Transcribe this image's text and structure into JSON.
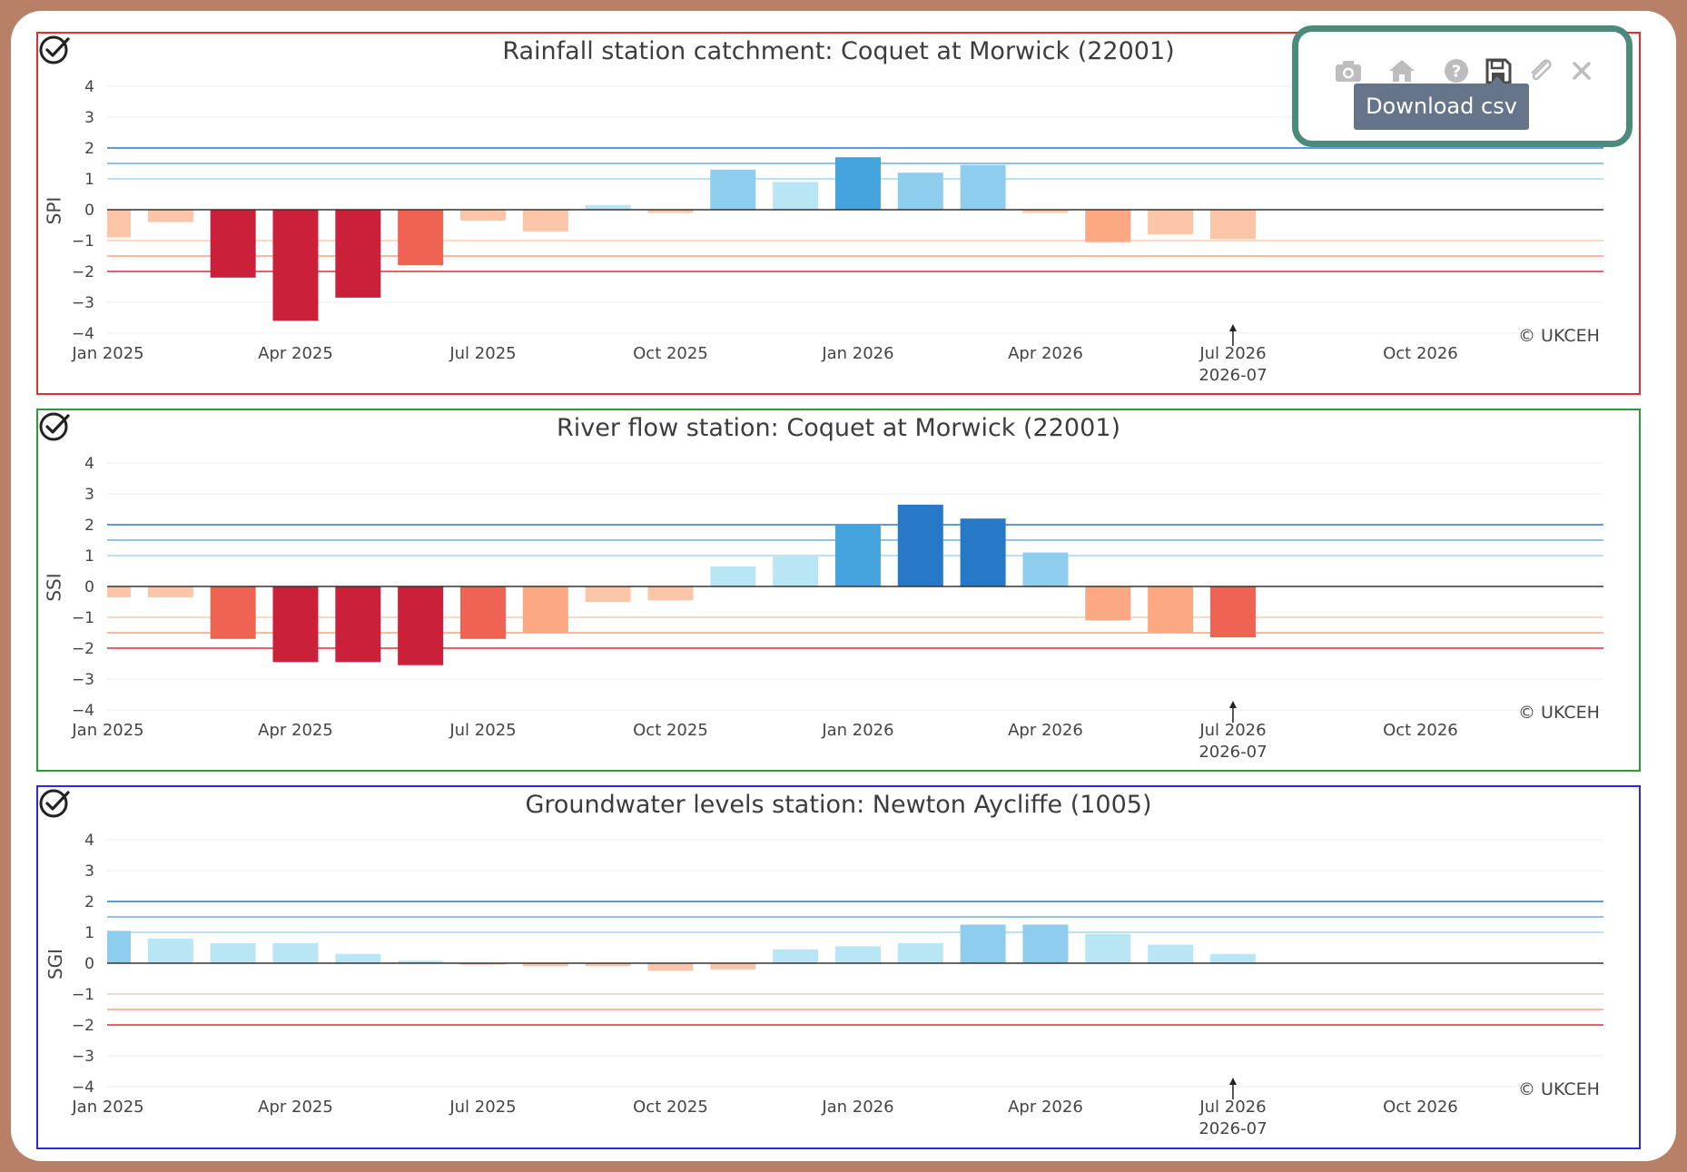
{
  "toolbar": {
    "icons": [
      "camera-icon",
      "home-icon",
      "help-icon",
      "save-icon",
      "attach-icon",
      "close-icon"
    ],
    "tooltip": "Download csv"
  },
  "credit": "© UKCEH",
  "chart_data": [
    {
      "type": "bar",
      "title": "Rainfall station catchment: Coquet at Morwick (22001)",
      "ylabel": "SPI",
      "ylim": [
        -4,
        4
      ],
      "y_ticks": [
        "4",
        "3",
        "2",
        "1",
        "0",
        "−1",
        "−2",
        "−3",
        "−4"
      ],
      "x_ticks": [
        "Jan 2025",
        "Apr 2025",
        "Jul 2025",
        "Oct 2025",
        "Jan 2026",
        "Apr 2026",
        "Jul 2026",
        "Oct 2026"
      ],
      "marker_label": "2026-07",
      "categories": [
        "2025-01",
        "2025-02",
        "2025-03",
        "2025-04",
        "2025-05",
        "2025-06",
        "2025-07",
        "2025-08",
        "2025-09",
        "2025-10",
        "2025-11",
        "2025-12",
        "2026-01",
        "2026-02",
        "2026-03",
        "2026-04",
        "2026-05",
        "2026-06",
        "2026-07"
      ],
      "values": [
        -0.9,
        -0.4,
        -2.2,
        -3.6,
        -2.85,
        -1.8,
        -0.35,
        -0.7,
        0.15,
        -0.1,
        1.3,
        0.9,
        1.7,
        1.2,
        1.45,
        -0.1,
        -1.05,
        -0.8,
        -0.95
      ],
      "colors": [
        "#fcc5a8",
        "#fcc5a8",
        "#cb2039",
        "#cb2039",
        "#cb2039",
        "#ee6352",
        "#fcc5a8",
        "#fcc5a8",
        "#b9e6f4",
        "#fcc5a8",
        "#8fcdee",
        "#b9e6f4",
        "#45a3dd",
        "#8fcdee",
        "#8fcdee",
        "#fcc5a8",
        "#fca883",
        "#fcc5a8",
        "#fcc5a8"
      ],
      "thresholds": [
        {
          "value": 2,
          "color": "#5b9bdc"
        },
        {
          "value": 1.5,
          "color": "#8fc3ea"
        },
        {
          "value": 1,
          "color": "#b9e0f4"
        },
        {
          "value": -1,
          "color": "#fdd8c7"
        },
        {
          "value": -1.5,
          "color": "#fbb8a0"
        },
        {
          "value": -2,
          "color": "#e8616a"
        }
      ]
    },
    {
      "type": "bar",
      "title": "River flow station: Coquet at Morwick (22001)",
      "ylabel": "SSI",
      "ylim": [
        -4,
        4
      ],
      "y_ticks": [
        "4",
        "3",
        "2",
        "1",
        "0",
        "−1",
        "−2",
        "−3",
        "−4"
      ],
      "x_ticks": [
        "Jan 2025",
        "Apr 2025",
        "Jul 2025",
        "Oct 2025",
        "Jan 2026",
        "Apr 2026",
        "Jul 2026",
        "Oct 2026"
      ],
      "marker_label": "2026-07",
      "categories": [
        "2025-01",
        "2025-02",
        "2025-03",
        "2025-04",
        "2025-05",
        "2025-06",
        "2025-07",
        "2025-08",
        "2025-09",
        "2025-10",
        "2025-11",
        "2025-12",
        "2026-01",
        "2026-02",
        "2026-03",
        "2026-04",
        "2026-05",
        "2026-06",
        "2026-07"
      ],
      "values": [
        -0.35,
        -0.35,
        -1.7,
        -2.45,
        -2.45,
        -2.55,
        -1.7,
        -1.5,
        -0.5,
        -0.45,
        0.65,
        1.0,
        2.0,
        2.65,
        2.2,
        1.1,
        -1.1,
        -1.5,
        -1.65
      ],
      "colors": [
        "#fcc5a8",
        "#fcc5a8",
        "#ee6352",
        "#cb2039",
        "#cb2039",
        "#cb2039",
        "#ee6352",
        "#fca883",
        "#fcc5a8",
        "#fcc5a8",
        "#b9e6f4",
        "#b9e6f4",
        "#45a3dd",
        "#2878c8",
        "#2878c8",
        "#8fcdee",
        "#fca883",
        "#fca883",
        "#ee6352"
      ],
      "thresholds": [
        {
          "value": 2,
          "color": "#5b9bdc"
        },
        {
          "value": 1.5,
          "color": "#8fc3ea"
        },
        {
          "value": 1,
          "color": "#b9e0f4"
        },
        {
          "value": -1,
          "color": "#fdd8c7"
        },
        {
          "value": -1.5,
          "color": "#fbb8a0"
        },
        {
          "value": -2,
          "color": "#e8616a"
        }
      ]
    },
    {
      "type": "bar",
      "title": "Groundwater levels station: Newton Aycliffe (1005)",
      "ylabel": "SGI",
      "ylim": [
        -4,
        4
      ],
      "y_ticks": [
        "4",
        "3",
        "2",
        "1",
        "0",
        "−1",
        "−2",
        "−3",
        "−4"
      ],
      "x_ticks": [
        "Jan 2025",
        "Apr 2025",
        "Jul 2025",
        "Oct 2025",
        "Jan 2026",
        "Apr 2026",
        "Jul 2026",
        "Oct 2026"
      ],
      "marker_label": "2026-07",
      "categories": [
        "2025-01",
        "2025-02",
        "2025-03",
        "2025-04",
        "2025-05",
        "2025-06",
        "2025-07",
        "2025-08",
        "2025-09",
        "2025-10",
        "2025-11",
        "2025-12",
        "2026-01",
        "2026-02",
        "2026-03",
        "2026-04",
        "2026-05",
        "2026-06",
        "2026-07"
      ],
      "values": [
        1.05,
        0.8,
        0.65,
        0.65,
        0.3,
        0.08,
        -0.05,
        -0.1,
        -0.1,
        -0.25,
        -0.2,
        0.45,
        0.55,
        0.65,
        1.25,
        1.25,
        0.95,
        0.6,
        0.3
      ],
      "colors": [
        "#8fcdee",
        "#b9e6f4",
        "#b9e6f4",
        "#b9e6f4",
        "#b9e6f4",
        "#b9e6f4",
        "#fcc5a8",
        "#fcc5a8",
        "#fcc5a8",
        "#fcc5a8",
        "#fcc5a8",
        "#b9e6f4",
        "#b9e6f4",
        "#b9e6f4",
        "#8fcdee",
        "#8fcdee",
        "#b9e6f4",
        "#b9e6f4",
        "#b9e6f4"
      ],
      "thresholds": [
        {
          "value": 2,
          "color": "#5b9bdc"
        },
        {
          "value": 1.5,
          "color": "#8fc3ea"
        },
        {
          "value": 1,
          "color": "#b9e0f4"
        },
        {
          "value": -1,
          "color": "#fdd8c7"
        },
        {
          "value": -1.5,
          "color": "#fbb8a0"
        },
        {
          "value": -2,
          "color": "#e8616a"
        }
      ]
    }
  ]
}
